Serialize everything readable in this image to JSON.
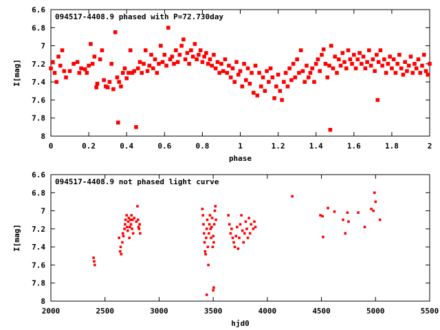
{
  "chart_data": [
    {
      "type": "scatter",
      "title": "094517-4408.9 phased with P=72.730day",
      "xlabel": "phase",
      "ylabel": "I[mag]",
      "xlim": [
        0,
        2
      ],
      "ylim": [
        6.6,
        8.0
      ],
      "y_inverted": true,
      "xticks": [
        0,
        0.2,
        0.4,
        0.6,
        0.8,
        1,
        1.2,
        1.4,
        1.6,
        1.8,
        2
      ],
      "xtick_labels": [
        "0",
        "0.2",
        "0.4",
        "0.6",
        "0.8",
        "1",
        "1.2",
        "1.4",
        "1.6",
        "1.8",
        "2"
      ],
      "yticks": [
        6.6,
        6.8,
        7.0,
        7.2,
        7.4,
        7.6,
        7.8,
        8.0
      ],
      "ytick_labels": [
        "6.6",
        "6.8",
        "7",
        "7.2",
        "7.4",
        "7.6",
        "7.8",
        "8"
      ],
      "marker_color": "#ff0000",
      "points": [
        [
          0.0,
          7.25
        ],
        [
          0.01,
          7.18
        ],
        [
          0.02,
          7.3
        ],
        [
          0.03,
          7.4
        ],
        [
          0.04,
          7.12
        ],
        [
          0.05,
          7.22
        ],
        [
          0.06,
          7.05
        ],
        [
          0.07,
          7.28
        ],
        [
          0.08,
          7.35
        ],
        [
          0.1,
          7.28
        ],
        [
          0.12,
          7.2
        ],
        [
          0.14,
          7.18
        ],
        [
          0.15,
          7.3
        ],
        [
          0.16,
          7.25
        ],
        [
          0.18,
          7.26
        ],
        [
          0.19,
          7.3
        ],
        [
          0.2,
          7.22
        ],
        [
          0.21,
          6.98
        ],
        [
          0.22,
          7.2
        ],
        [
          0.23,
          7.12
        ],
        [
          0.24,
          7.46
        ],
        [
          0.245,
          7.42
        ],
        [
          0.26,
          7.15
        ],
        [
          0.27,
          7.05
        ],
        [
          0.28,
          7.38
        ],
        [
          0.29,
          7.45
        ],
        [
          0.3,
          7.46
        ],
        [
          0.31,
          7.4
        ],
        [
          0.32,
          7.2
        ],
        [
          0.33,
          7.48
        ],
        [
          0.34,
          6.85
        ],
        [
          0.35,
          7.35
        ],
        [
          0.355,
          7.85
        ],
        [
          0.36,
          7.4
        ],
        [
          0.37,
          7.45
        ],
        [
          0.38,
          7.3
        ],
        [
          0.39,
          7.25
        ],
        [
          0.4,
          7.36
        ],
        [
          0.41,
          7.3
        ],
        [
          0.42,
          7.05
        ],
        [
          0.43,
          7.3
        ],
        [
          0.44,
          7.28
        ],
        [
          0.45,
          7.9
        ],
        [
          0.46,
          7.25
        ],
        [
          0.47,
          7.18
        ],
        [
          0.48,
          7.3
        ],
        [
          0.49,
          7.2
        ],
        [
          0.5,
          7.05
        ],
        [
          0.51,
          7.28
        ],
        [
          0.52,
          7.22
        ],
        [
          0.53,
          7.1
        ],
        [
          0.54,
          7.25
        ],
        [
          0.55,
          7.15
        ],
        [
          0.56,
          7.3
        ],
        [
          0.57,
          7.2
        ],
        [
          0.58,
          7.0
        ],
        [
          0.59,
          7.18
        ],
        [
          0.6,
          7.1
        ],
        [
          0.61,
          7.22
        ],
        [
          0.62,
          6.8
        ],
        [
          0.63,
          7.15
        ],
        [
          0.64,
          7.12
        ],
        [
          0.65,
          7.2
        ],
        [
          0.66,
          7.05
        ],
        [
          0.67,
          7.18
        ],
        [
          0.68,
          7.1
        ],
        [
          0.69,
          7.0
        ],
        [
          0.7,
          6.93
        ],
        [
          0.71,
          7.15
        ],
        [
          0.72,
          7.08
        ],
        [
          0.73,
          7.2
        ],
        [
          0.74,
          7.05
        ],
        [
          0.75,
          7.12
        ],
        [
          0.76,
          6.98
        ],
        [
          0.77,
          7.15
        ],
        [
          0.78,
          7.1
        ],
        [
          0.79,
          7.05
        ],
        [
          0.8,
          7.18
        ],
        [
          0.81,
          7.12
        ],
        [
          0.82,
          7.08
        ],
        [
          0.83,
          7.2
        ],
        [
          0.84,
          7.15
        ],
        [
          0.85,
          7.22
        ],
        [
          0.86,
          7.1
        ],
        [
          0.87,
          7.25
        ],
        [
          0.88,
          7.18
        ],
        [
          0.89,
          7.3
        ],
        [
          0.9,
          7.2
        ],
        [
          0.91,
          7.28
        ],
        [
          0.92,
          7.15
        ],
        [
          0.93,
          7.3
        ],
        [
          0.94,
          7.22
        ],
        [
          0.95,
          7.35
        ],
        [
          0.96,
          7.25
        ],
        [
          0.97,
          7.4
        ],
        [
          0.98,
          7.18
        ],
        [
          0.99,
          7.32
        ],
        [
          1.0,
          7.28
        ],
        [
          1.01,
          7.45
        ],
        [
          1.02,
          7.2
        ],
        [
          1.03,
          7.38
        ],
        [
          1.04,
          7.25
        ],
        [
          1.05,
          7.42
        ],
        [
          1.06,
          7.3
        ],
        [
          1.07,
          7.52
        ],
        [
          1.08,
          7.22
        ],
        [
          1.09,
          7.55
        ],
        [
          1.1,
          7.3
        ],
        [
          1.11,
          7.45
        ],
        [
          1.12,
          7.35
        ],
        [
          1.13,
          7.5
        ],
        [
          1.14,
          7.28
        ],
        [
          1.15,
          7.4
        ],
        [
          1.16,
          7.25
        ],
        [
          1.17,
          7.35
        ],
        [
          1.18,
          7.58
        ],
        [
          1.19,
          7.45
        ],
        [
          1.2,
          7.32
        ],
        [
          1.21,
          7.5
        ],
        [
          1.22,
          7.6
        ],
        [
          1.23,
          7.4
        ],
        [
          1.24,
          7.3
        ],
        [
          1.25,
          7.45
        ],
        [
          1.26,
          7.25
        ],
        [
          1.27,
          7.38
        ],
        [
          1.28,
          7.2
        ],
        [
          1.29,
          7.35
        ],
        [
          1.3,
          7.15
        ],
        [
          1.31,
          7.3
        ],
        [
          1.32,
          7.05
        ],
        [
          1.33,
          7.28
        ],
        [
          1.34,
          7.4
        ],
        [
          1.35,
          7.22
        ],
        [
          1.36,
          7.35
        ],
        [
          1.37,
          7.3
        ],
        [
          1.38,
          7.25
        ],
        [
          1.39,
          7.4
        ],
        [
          1.4,
          7.2
        ],
        [
          1.41,
          7.15
        ],
        [
          1.42,
          7.28
        ],
        [
          1.43,
          7.1
        ],
        [
          1.44,
          7.04
        ],
        [
          1.45,
          7.2
        ],
        [
          1.46,
          7.35
        ],
        [
          1.47,
          7.22
        ],
        [
          1.475,
          7.93
        ],
        [
          1.48,
          7.0
        ],
        [
          1.49,
          7.25
        ],
        [
          1.5,
          7.12
        ],
        [
          1.51,
          7.3
        ],
        [
          1.52,
          7.15
        ],
        [
          1.53,
          7.22
        ],
        [
          1.54,
          7.08
        ],
        [
          1.55,
          7.18
        ],
        [
          1.56,
          7.25
        ],
        [
          1.57,
          7.05
        ],
        [
          1.58,
          7.15
        ],
        [
          1.59,
          7.2
        ],
        [
          1.6,
          7.1
        ],
        [
          1.61,
          7.25
        ],
        [
          1.62,
          7.15
        ],
        [
          1.63,
          7.08
        ],
        [
          1.64,
          7.2
        ],
        [
          1.65,
          7.12
        ],
        [
          1.66,
          7.25
        ],
        [
          1.67,
          7.18
        ],
        [
          1.68,
          7.05
        ],
        [
          1.69,
          7.22
        ],
        [
          1.7,
          7.15
        ],
        [
          1.71,
          7.28
        ],
        [
          1.72,
          7.1
        ],
        [
          1.725,
          7.6
        ],
        [
          1.73,
          7.18
        ],
        [
          1.74,
          7.05
        ],
        [
          1.75,
          7.22
        ],
        [
          1.76,
          7.15
        ],
        [
          1.77,
          7.3
        ],
        [
          1.78,
          7.2
        ],
        [
          1.79,
          7.12
        ],
        [
          1.8,
          7.25
        ],
        [
          1.81,
          7.15
        ],
        [
          1.82,
          7.3
        ],
        [
          1.83,
          7.2
        ],
        [
          1.84,
          7.1
        ],
        [
          1.85,
          7.25
        ],
        [
          1.86,
          7.32
        ],
        [
          1.87,
          7.18
        ],
        [
          1.88,
          7.28
        ],
        [
          1.89,
          7.22
        ],
        [
          1.9,
          7.12
        ],
        [
          1.91,
          7.3
        ],
        [
          1.92,
          7.2
        ],
        [
          1.93,
          7.25
        ],
        [
          1.94,
          7.15
        ],
        [
          1.95,
          7.3
        ],
        [
          1.96,
          7.22
        ],
        [
          1.97,
          7.1
        ],
        [
          1.98,
          7.28
        ],
        [
          1.99,
          7.32
        ],
        [
          2.0,
          7.2
        ]
      ]
    },
    {
      "type": "scatter",
      "title": "094517-4408.9 not phased light curve",
      "xlabel": "hjd0",
      "ylabel": "I[mag]",
      "xlim": [
        2000,
        5500
      ],
      "ylim": [
        6.6,
        8.0
      ],
      "y_inverted": true,
      "xticks": [
        2000,
        2500,
        3000,
        3500,
        4000,
        4500,
        5000,
        5500
      ],
      "xtick_labels": [
        "2000",
        "2500",
        "3000",
        "3500",
        "4000",
        "4500",
        "5000",
        "5500"
      ],
      "yticks": [
        6.6,
        6.8,
        7.0,
        7.2,
        7.4,
        7.6,
        7.8,
        8.0
      ],
      "ytick_labels": [
        "6.6",
        "6.8",
        "7",
        "7.2",
        "7.4",
        "7.6",
        "7.8",
        "8"
      ],
      "marker_color": "#ff0000",
      "points": [
        [
          2395,
          7.52
        ],
        [
          2400,
          7.56
        ],
        [
          2405,
          7.6
        ],
        [
          2630,
          7.3
        ],
        [
          2640,
          7.45
        ],
        [
          2645,
          7.4
        ],
        [
          2650,
          7.48
        ],
        [
          2660,
          7.35
        ],
        [
          2665,
          7.25
        ],
        [
          2670,
          7.28
        ],
        [
          2680,
          7.2
        ],
        [
          2685,
          7.15
        ],
        [
          2690,
          7.1
        ],
        [
          2700,
          7.05
        ],
        [
          2705,
          7.18
        ],
        [
          2710,
          7.22
        ],
        [
          2715,
          7.12
        ],
        [
          2720,
          7.08
        ],
        [
          2725,
          7.3
        ],
        [
          2730,
          7.18
        ],
        [
          2735,
          7.1
        ],
        [
          2740,
          7.15
        ],
        [
          2745,
          7.05
        ],
        [
          2750,
          7.2
        ],
        [
          2755,
          7.1
        ],
        [
          2760,
          7.25
        ],
        [
          2770,
          7.08
        ],
        [
          2790,
          7.12
        ],
        [
          2800,
          6.95
        ],
        [
          2805,
          7.1
        ],
        [
          2810,
          7.18
        ],
        [
          2815,
          7.2
        ],
        [
          2820,
          7.15
        ],
        [
          2825,
          7.25
        ],
        [
          3400,
          6.98
        ],
        [
          3405,
          7.05
        ],
        [
          3410,
          7.15
        ],
        [
          3415,
          7.25
        ],
        [
          3420,
          7.35
        ],
        [
          3425,
          7.45
        ],
        [
          3430,
          7.48
        ],
        [
          3435,
          7.3
        ],
        [
          3440,
          7.2
        ],
        [
          3445,
          7.1
        ],
        [
          3450,
          7.4
        ],
        [
          3455,
          7.6
        ],
        [
          3460,
          7.25
        ],
        [
          3465,
          7.15
        ],
        [
          3470,
          7.05
        ],
        [
          3475,
          7.2
        ],
        [
          3480,
          7.3
        ],
        [
          3485,
          7.18
        ],
        [
          3490,
          7.08
        ],
        [
          3495,
          7.4
        ],
        [
          3500,
          7.28
        ],
        [
          3505,
          7.35
        ],
        [
          3510,
          7.15
        ],
        [
          3515,
          7.0
        ],
        [
          3520,
          6.95
        ],
        [
          3525,
          7.1
        ],
        [
          3440,
          7.93
        ],
        [
          3500,
          7.88
        ],
        [
          3505,
          7.85
        ],
        [
          3640,
          7.05
        ],
        [
          3650,
          7.15
        ],
        [
          3660,
          7.25
        ],
        [
          3670,
          7.2
        ],
        [
          3680,
          7.3
        ],
        [
          3690,
          7.35
        ],
        [
          3700,
          7.4
        ],
        [
          3710,
          7.28
        ],
        [
          3720,
          7.18
        ],
        [
          3730,
          7.42
        ],
        [
          3740,
          7.3
        ],
        [
          3750,
          7.15
        ],
        [
          3760,
          7.05
        ],
        [
          3770,
          7.22
        ],
        [
          3780,
          7.35
        ],
        [
          3790,
          7.25
        ],
        [
          3800,
          7.12
        ],
        [
          3810,
          7.2
        ],
        [
          3820,
          7.3
        ],
        [
          3830,
          7.08
        ],
        [
          3840,
          7.25
        ],
        [
          3850,
          7.15
        ],
        [
          3870,
          7.2
        ],
        [
          3880,
          7.12
        ],
        [
          3890,
          7.18
        ],
        [
          4230,
          6.84
        ],
        [
          4490,
          7.05
        ],
        [
          4510,
          7.06
        ],
        [
          4515,
          7.29
        ],
        [
          4560,
          6.97
        ],
        [
          4620,
          7.01
        ],
        [
          4700,
          7.1
        ],
        [
          4720,
          7.25
        ],
        [
          4740,
          7.02
        ],
        [
          4750,
          7.12
        ],
        [
          4840,
          7.02
        ],
        [
          4900,
          7.18
        ],
        [
          4960,
          6.98
        ],
        [
          4980,
          7.0
        ],
        [
          4990,
          6.8
        ],
        [
          5000,
          6.9
        ],
        [
          5040,
          7.1
        ]
      ]
    }
  ]
}
